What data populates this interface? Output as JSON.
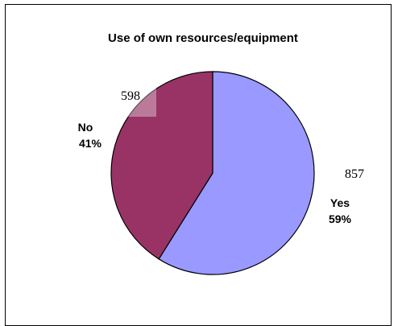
{
  "chart_data": {
    "type": "pie",
    "title": "Use of own resources/equipment",
    "categories": [
      "Yes",
      "No"
    ],
    "values": [
      857,
      598
    ],
    "percent_labels": [
      "59%",
      "41%"
    ],
    "colors": [
      "#9999ff",
      "#993366"
    ],
    "start_angle_deg": 90,
    "direction": "clockwise",
    "legend": "none"
  }
}
